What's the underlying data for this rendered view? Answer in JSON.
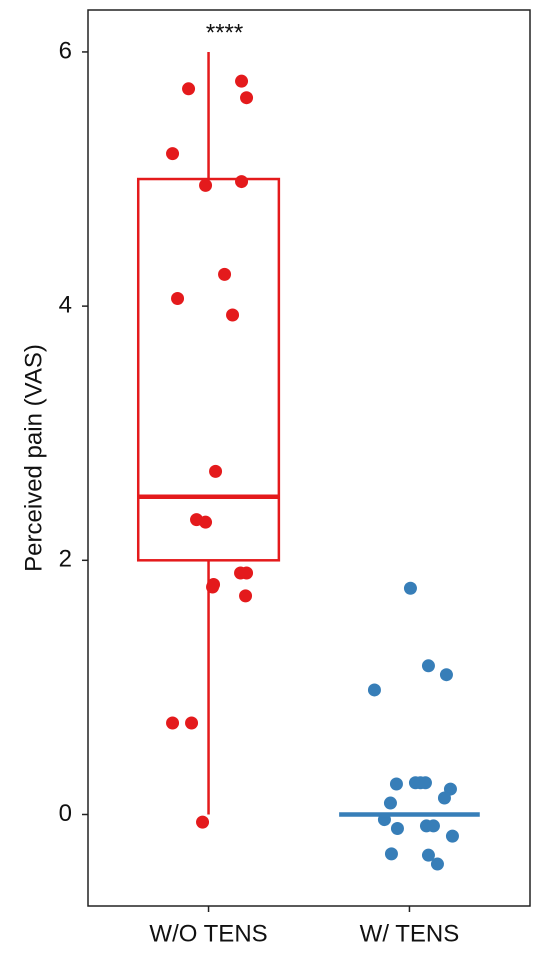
{
  "chart_data": {
    "type": "box",
    "ylabel": "Perceived pain (VAS)",
    "annotation": "****",
    "categories": [
      "W/O TENS",
      "W/ TENS"
    ],
    "ylim": [
      -0.72,
      6.33
    ],
    "yticks": [
      0,
      2,
      4,
      6
    ],
    "groups": [
      {
        "color": "#e41a1c",
        "min": 0,
        "q1": 2,
        "median": 2.5,
        "q3": 5,
        "max": 6,
        "points": [
          5.71,
          5.77,
          5.64,
          5.2,
          4.95,
          4.98,
          4.25,
          4.06,
          3.93,
          2.7,
          2.32,
          2.3,
          1.9,
          1.9,
          1.81,
          1.79,
          1.72,
          0.72,
          0.72,
          -0.06
        ]
      },
      {
        "color": "#377eb8",
        "min": 0,
        "q1": 0,
        "median": 0,
        "q3": 0,
        "max": 0,
        "points": [
          1.78,
          1.17,
          1.1,
          0.98,
          0.24,
          0.25,
          0.25,
          0.25,
          0.2,
          0.09,
          0.13,
          -0.04,
          -0.11,
          -0.09,
          -0.09,
          -0.31,
          -0.32,
          -0.17,
          -0.39
        ]
      }
    ]
  }
}
